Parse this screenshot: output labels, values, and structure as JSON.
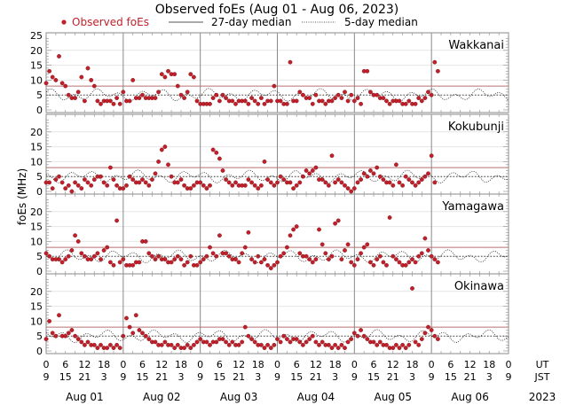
{
  "chart_data": {
    "type": "scatter",
    "title": "Observed foEs (Aug 01 - Aug 06, 2023)",
    "ylabel": "foEs (MHz)",
    "ylim": [
      0,
      25
    ],
    "xlim_hours": [
      0,
      144
    ],
    "legend": {
      "placement": "top",
      "entries": [
        {
          "label": "Observed foEs",
          "style": "red-dots",
          "color": "#c0202a"
        },
        {
          "label": "27-day median",
          "style": "solid-line"
        },
        {
          "label": "5-day median",
          "style": "dotted-line"
        }
      ]
    },
    "x_ticks_ut": [
      "0",
      "6",
      "12",
      "18",
      "0",
      "6",
      "12",
      "18",
      "0",
      "6",
      "12",
      "18",
      "0",
      "6",
      "12",
      "18",
      "0",
      "6",
      "12",
      "18",
      "0",
      "6",
      "12",
      "18",
      "0"
    ],
    "x_ticks_jst": [
      "9",
      "15",
      "21",
      "3",
      "9",
      "15",
      "21",
      "3",
      "9",
      "15",
      "21",
      "3",
      "9",
      "15",
      "21",
      "3",
      "9",
      "15",
      "21",
      "3",
      "9",
      "15",
      "21",
      "3",
      "9"
    ],
    "x_row_labels": {
      "ut": "UT",
      "jst": "JST"
    },
    "days": [
      "Aug 01",
      "Aug 02",
      "Aug 03",
      "Aug 04",
      "Aug 05",
      "Aug 06"
    ],
    "year": "2023",
    "panels": [
      {
        "station": "Wakkanai",
        "y_ticks": [
          "0",
          "5",
          "10",
          "15",
          "20",
          "25"
        ],
        "median_27day": 8,
        "median_5day": 5,
        "observed_hours": [
          0,
          1,
          2,
          3,
          4,
          5,
          6,
          7,
          8,
          9,
          10,
          11,
          12,
          13,
          14,
          15,
          16,
          17,
          18,
          19,
          20,
          21,
          22,
          23,
          24,
          25,
          26,
          27,
          28,
          29,
          30,
          31,
          32,
          33,
          34,
          35,
          36,
          37,
          38,
          39,
          40,
          41,
          42,
          43,
          44,
          45,
          46,
          47,
          48,
          49,
          50,
          51,
          52,
          53,
          54,
          55,
          56,
          57,
          58,
          59,
          60,
          61,
          62,
          63,
          64,
          65,
          66,
          67,
          68,
          69,
          70,
          71,
          72,
          73,
          74,
          75,
          76,
          77,
          78,
          79,
          80,
          81,
          82,
          83,
          84,
          85,
          86,
          87,
          88,
          89,
          90,
          91,
          92,
          93,
          94,
          95,
          96,
          97,
          98,
          99,
          100,
          101,
          102,
          103,
          104,
          105,
          106,
          107,
          108,
          109,
          110,
          111,
          112,
          113,
          114,
          115,
          116,
          117,
          118,
          119,
          120,
          121,
          122
        ],
        "observed_values": [
          9,
          13,
          11,
          10,
          18,
          9,
          8,
          5,
          4,
          4,
          6,
          11,
          3,
          14,
          10,
          8,
          3,
          2,
          3,
          3,
          3,
          2,
          4,
          2,
          6,
          3,
          3,
          10,
          4,
          4,
          5,
          4,
          4,
          4,
          4,
          6,
          12,
          11,
          13,
          12,
          12,
          8,
          5,
          4,
          6,
          12,
          11,
          3,
          2,
          2,
          2,
          2,
          4,
          5,
          3,
          5,
          4,
          3,
          3,
          2,
          3,
          3,
          3,
          2,
          4,
          3,
          2,
          4,
          2,
          3,
          3,
          8,
          3,
          3,
          2,
          2,
          16,
          3,
          3,
          6,
          5,
          4,
          4,
          2,
          5,
          3,
          3,
          2,
          3,
          3,
          4,
          5,
          4,
          6,
          3,
          5,
          3,
          4,
          2,
          13,
          13,
          6,
          5,
          5,
          4,
          4,
          3,
          2,
          3,
          3,
          3,
          2,
          2,
          3,
          2,
          2,
          4,
          3,
          4,
          6,
          5,
          16,
          13
        ]
      },
      {
        "station": "Kokubunji",
        "y_ticks": [
          "0",
          "5",
          "10",
          "15",
          "20"
        ],
        "median_27day": 8,
        "median_5day": 5,
        "observed_hours": [
          0,
          1,
          2,
          3,
          4,
          5,
          6,
          7,
          8,
          9,
          10,
          11,
          12,
          13,
          14,
          15,
          16,
          17,
          18,
          19,
          20,
          21,
          22,
          23,
          24,
          25,
          26,
          27,
          28,
          29,
          30,
          31,
          32,
          33,
          34,
          35,
          36,
          37,
          38,
          39,
          40,
          41,
          42,
          43,
          44,
          45,
          46,
          47,
          48,
          49,
          50,
          51,
          52,
          53,
          54,
          55,
          56,
          57,
          58,
          59,
          60,
          61,
          62,
          63,
          64,
          65,
          66,
          67,
          68,
          69,
          70,
          71,
          72,
          73,
          74,
          75,
          76,
          77,
          78,
          79,
          80,
          81,
          82,
          83,
          84,
          85,
          86,
          87,
          88,
          89,
          90,
          91,
          92,
          93,
          94,
          95,
          96,
          97,
          98,
          99,
          100,
          101,
          102,
          103,
          104,
          105,
          106,
          107,
          108,
          109,
          110,
          111,
          112,
          113,
          114,
          115,
          116,
          117,
          118,
          119,
          120,
          121
        ],
        "observed_values": [
          3,
          3,
          1,
          4,
          5,
          3,
          1,
          2,
          0,
          3,
          2,
          1,
          4,
          3,
          2,
          4,
          5,
          5,
          3,
          2,
          8,
          4,
          2,
          1,
          1,
          2,
          5,
          4,
          3,
          3,
          4,
          3,
          2,
          4,
          6,
          10,
          14,
          15,
          9,
          5,
          3,
          3,
          4,
          2,
          1,
          1,
          2,
          3,
          3,
          2,
          1,
          2,
          14,
          13,
          11,
          7,
          4,
          3,
          2,
          3,
          2,
          2,
          2,
          4,
          3,
          2,
          1,
          2,
          10,
          4,
          3,
          2,
          3,
          5,
          4,
          3,
          3,
          1,
          2,
          3,
          5,
          7,
          6,
          7,
          8,
          4,
          4,
          3,
          2,
          12,
          3,
          4,
          3,
          2,
          1,
          0,
          1,
          3,
          4,
          6,
          5,
          7,
          6,
          8,
          5,
          4,
          3,
          3,
          2,
          9,
          3,
          2,
          5,
          4,
          3,
          2,
          3,
          4,
          5,
          6,
          12,
          3
        ]
      },
      {
        "station": "Yamagawa",
        "y_ticks": [
          "0",
          "5",
          "10",
          "15",
          "20"
        ],
        "median_27day": 8,
        "median_5day": 5,
        "observed_hours": [
          0,
          1,
          2,
          3,
          4,
          5,
          6,
          7,
          8,
          9,
          10,
          11,
          12,
          13,
          14,
          15,
          16,
          17,
          18,
          19,
          20,
          21,
          22,
          23,
          24,
          25,
          26,
          27,
          28,
          29,
          30,
          31,
          32,
          33,
          34,
          35,
          36,
          37,
          38,
          39,
          40,
          41,
          42,
          43,
          44,
          45,
          46,
          47,
          48,
          49,
          50,
          51,
          52,
          53,
          54,
          55,
          56,
          57,
          58,
          59,
          60,
          61,
          62,
          63,
          64,
          65,
          66,
          67,
          68,
          69,
          70,
          71,
          72,
          73,
          74,
          75,
          76,
          77,
          78,
          79,
          80,
          81,
          82,
          83,
          84,
          85,
          86,
          87,
          88,
          89,
          90,
          91,
          92,
          93,
          94,
          95,
          96,
          97,
          98,
          99,
          100,
          101,
          102,
          103,
          104,
          105,
          106,
          107,
          108,
          109,
          110,
          111,
          112,
          113,
          114,
          115,
          116,
          117,
          118,
          119,
          120,
          121,
          122
        ],
        "observed_values": [
          6,
          5,
          4,
          4,
          4,
          3,
          4,
          5,
          7,
          12,
          10,
          6,
          5,
          4,
          4,
          5,
          6,
          4,
          7,
          8,
          3,
          2,
          17,
          3,
          4,
          2,
          2,
          2,
          3,
          3,
          10,
          10,
          6,
          5,
          4,
          5,
          4,
          4,
          3,
          3,
          4,
          5,
          4,
          2,
          3,
          5,
          2,
          2,
          3,
          4,
          5,
          8,
          6,
          5,
          12,
          6,
          6,
          5,
          4,
          4,
          3,
          6,
          8,
          13,
          4,
          3,
          5,
          3,
          4,
          2,
          1,
          2,
          3,
          5,
          6,
          8,
          12,
          14,
          15,
          6,
          5,
          5,
          4,
          3,
          4,
          14,
          9,
          6,
          4,
          5,
          16,
          17,
          4,
          7,
          9,
          3,
          2,
          4,
          6,
          8,
          9,
          3,
          2,
          4,
          5,
          3,
          2,
          18,
          5,
          4,
          3,
          2,
          2,
          3,
          4,
          3,
          5,
          6,
          11,
          7,
          5,
          4,
          3
        ]
      },
      {
        "station": "Okinawa",
        "y_ticks": [
          "0",
          "5",
          "10",
          "15",
          "20"
        ],
        "median_27day": 8,
        "median_5day": 5,
        "observed_hours": [
          0,
          1,
          2,
          3,
          4,
          5,
          6,
          7,
          8,
          9,
          10,
          11,
          12,
          13,
          14,
          15,
          16,
          17,
          18,
          19,
          20,
          21,
          22,
          23,
          24,
          25,
          26,
          27,
          28,
          29,
          30,
          31,
          32,
          33,
          34,
          35,
          36,
          37,
          38,
          39,
          40,
          41,
          42,
          43,
          44,
          45,
          46,
          47,
          48,
          49,
          50,
          51,
          52,
          53,
          54,
          55,
          56,
          57,
          58,
          59,
          60,
          61,
          62,
          63,
          64,
          65,
          66,
          67,
          68,
          69,
          70,
          71,
          72,
          73,
          74,
          75,
          76,
          77,
          78,
          79,
          80,
          81,
          82,
          83,
          84,
          85,
          86,
          87,
          88,
          89,
          90,
          91,
          92,
          93,
          94,
          95,
          96,
          97,
          98,
          99,
          100,
          101,
          102,
          103,
          104,
          105,
          106,
          107,
          108,
          109,
          110,
          111,
          112,
          113,
          114,
          115,
          116,
          117,
          118,
          119,
          120,
          121,
          122
        ],
        "observed_values": [
          4,
          10,
          6,
          5,
          12,
          5,
          5,
          6,
          7,
          5,
          4,
          3,
          2,
          3,
          2,
          2,
          1,
          2,
          1,
          1,
          2,
          1,
          2,
          1,
          5,
          11,
          8,
          6,
          12,
          7,
          6,
          5,
          4,
          3,
          3,
          2,
          2,
          3,
          2,
          2,
          1,
          2,
          1,
          1,
          2,
          1,
          2,
          3,
          4,
          3,
          3,
          2,
          3,
          3,
          4,
          4,
          3,
          2,
          3,
          2,
          2,
          3,
          8,
          5,
          4,
          3,
          2,
          2,
          1,
          2,
          1,
          2,
          4,
          3,
          5,
          4,
          3,
          4,
          4,
          3,
          2,
          3,
          4,
          5,
          3,
          2,
          3,
          2,
          2,
          1,
          2,
          1,
          2,
          1,
          3,
          4,
          6,
          5,
          7,
          5,
          4,
          3,
          3,
          2,
          3,
          2,
          2,
          1,
          1,
          2,
          1,
          2,
          1,
          2,
          21,
          3,
          2,
          4,
          6,
          8,
          7,
          5,
          4
        ]
      }
    ]
  }
}
